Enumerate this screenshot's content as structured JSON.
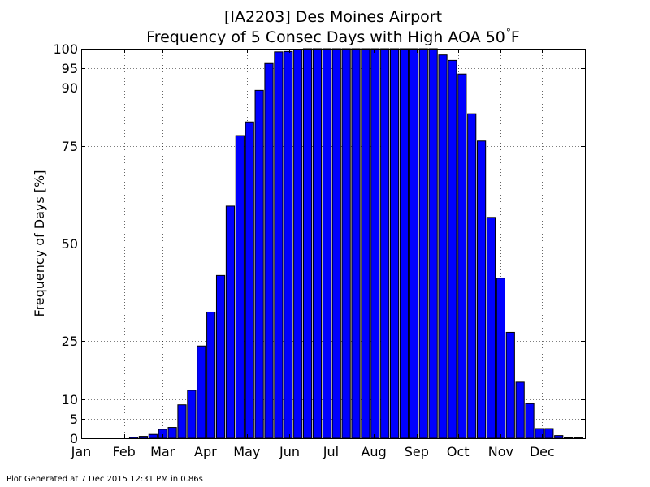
{
  "footer": "Plot Generated at 7 Dec 2015 12:31 PM in 0.86s",
  "chart_data": {
    "type": "bar",
    "title_line1": "[IA2203] Des Moines Airport",
    "title_line2": "Frequency of 5 Consec Days with High AOA 50",
    "title_unit_sup": "°",
    "title_unit": "F",
    "xlabel": "",
    "ylabel": "Frequency of Days [%]",
    "xlim": [
      1,
      366
    ],
    "ylim": [
      0,
      100
    ],
    "yticks": [
      0,
      5,
      10,
      25,
      50,
      75,
      90,
      95,
      100
    ],
    "xticks": [
      {
        "doy": 1,
        "label": "Jan"
      },
      {
        "doy": 32,
        "label": "Feb"
      },
      {
        "doy": 60,
        "label": "Mar"
      },
      {
        "doy": 91,
        "label": "Apr"
      },
      {
        "doy": 121,
        "label": "May"
      },
      {
        "doy": 152,
        "label": "Jun"
      },
      {
        "doy": 182,
        "label": "Jul"
      },
      {
        "doy": 213,
        "label": "Aug"
      },
      {
        "doy": 244,
        "label": "Sep"
      },
      {
        "doy": 274,
        "label": "Oct"
      },
      {
        "doy": 305,
        "label": "Nov"
      },
      {
        "doy": 335,
        "label": "Dec"
      }
    ],
    "grid": true,
    "bar_color": "#0000ff",
    "bar_edge_color": "#000000",
    "bar_width_days": 6,
    "bar_start_doy": [
      1,
      8,
      15,
      22,
      29,
      36,
      43,
      50,
      57,
      64,
      71,
      78,
      85,
      92,
      99,
      106,
      113,
      120,
      127,
      134,
      141,
      148,
      155,
      162,
      169,
      176,
      183,
      190,
      197,
      204,
      211,
      218,
      225,
      232,
      239,
      246,
      253,
      260,
      267,
      274,
      281,
      288,
      295,
      302,
      309,
      316,
      323,
      330,
      337,
      344,
      351,
      358
    ],
    "values": [
      0,
      0,
      0,
      0,
      0,
      0.3,
      0.5,
      1,
      2.3,
      2.8,
      8.6,
      12.3,
      23.7,
      32.4,
      41.8,
      59.6,
      77.7,
      81.2,
      89.3,
      96.2,
      99.2,
      99.3,
      99.7,
      100,
      100,
      100,
      100,
      100,
      100,
      100,
      100,
      100,
      100,
      100,
      100,
      100,
      100,
      98.4,
      97,
      93.5,
      83.3,
      76.3,
      56.7,
      41.1,
      27.2,
      14.4,
      8.9,
      2.5,
      2.5,
      0.7,
      0.2,
      0.1
    ]
  }
}
